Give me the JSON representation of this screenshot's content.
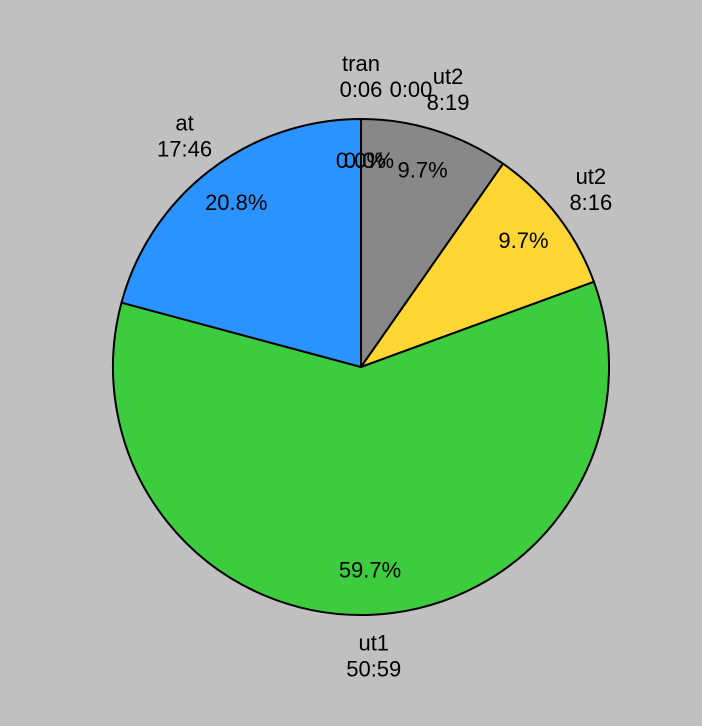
{
  "chart_data": {
    "type": "pie",
    "categories": [
      "tran",
      null,
      "ut2",
      "ut2",
      "ut1",
      "at"
    ],
    "times": [
      "0:06",
      "0:00",
      "8:19",
      "8:16",
      "50:59",
      "17:46"
    ],
    "values": [
      0.0,
      0.0,
      9.7,
      9.7,
      59.7,
      20.8
    ],
    "value_labels": [
      "0.0%",
      "0.0%",
      "9.7%",
      "9.7%",
      "59.7%",
      "20.8%"
    ],
    "colors": [
      "#ff3333",
      "#cccccc",
      "#888888",
      "#ffd633",
      "#3dcc3d",
      "#2a93ff"
    ]
  }
}
